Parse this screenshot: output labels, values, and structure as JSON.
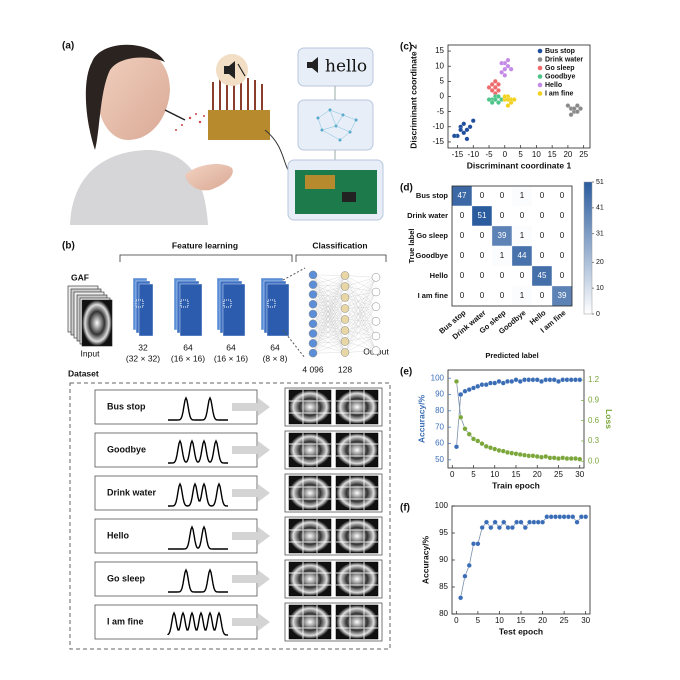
{
  "panel_a": {
    "label": "(a)",
    "speech_text": "hello"
  },
  "panel_b": {
    "label": "(b)",
    "feature_learning": "Feature learning",
    "classification": "Classification",
    "gaf": "GAF",
    "input": "Input",
    "layers": [
      {
        "channels": "32",
        "size": "(32 × 32)"
      },
      {
        "channels": "64",
        "size": "(16 × 16)"
      },
      {
        "channels": "64",
        "size": "(16 × 16)"
      },
      {
        "channels": "64",
        "size": "(8 × 8)"
      }
    ],
    "dense": [
      "4 096",
      "128"
    ],
    "output": "Output",
    "dataset_title": "Dataset",
    "dataset": [
      "Bus stop",
      "Goodbye",
      "Drink water",
      "Hello",
      "Go sleep",
      "I am fine"
    ]
  },
  "chart_data": [
    {
      "type": "scatter",
      "label": "(c)",
      "xlabel": "Discriminant coordinate 1",
      "ylabel": "Discriminant coordinate 2",
      "xlim": [
        -18,
        27
      ],
      "xticks": [
        -15,
        -10,
        -5,
        0,
        5,
        10,
        15,
        20,
        25
      ],
      "ylim": [
        -17,
        17
      ],
      "yticks": [
        -15,
        -10,
        -5,
        0,
        5,
        10,
        15
      ],
      "legend": "upper right",
      "series": [
        {
          "name": "Bus stop",
          "color": "#1f4e9c",
          "x": [
            -14,
            -13,
            -12,
            -15,
            -13,
            -11,
            -14,
            -12,
            -16,
            -10
          ],
          "values": [
            -10,
            -12,
            -11,
            -13,
            -9,
            -10,
            -11,
            -14,
            -13,
            -8
          ]
        },
        {
          "name": "Drink water",
          "color": "#8a8a8a",
          "x": [
            20,
            21,
            22,
            23,
            22,
            21,
            23,
            24
          ],
          "values": [
            -3,
            -4,
            -5,
            -3,
            -4,
            -6,
            -5,
            -4
          ]
        },
        {
          "name": "Go sleep",
          "color": "#ef6b6b",
          "x": [
            -4,
            -3,
            -2,
            -5,
            -3,
            -4,
            -2,
            -3
          ],
          "values": [
            2,
            3,
            4,
            3,
            5,
            4,
            2,
            1
          ]
        },
        {
          "name": "Goodbye",
          "color": "#4fc48a",
          "x": [
            -4,
            -3,
            -2,
            -3,
            -4,
            -2,
            -5,
            -1
          ],
          "values": [
            -1,
            0,
            -2,
            -1,
            -2,
            0,
            -1,
            -1
          ]
        },
        {
          "name": "Hello",
          "color": "#c38ae6",
          "x": [
            -1,
            0,
            1,
            0,
            2,
            -1,
            1,
            0
          ],
          "values": [
            8,
            9,
            10,
            11,
            9,
            11,
            12,
            7
          ]
        },
        {
          "name": "I am fine",
          "color": "#f2d21e",
          "x": [
            0,
            1,
            2,
            1,
            0,
            2,
            1,
            3
          ],
          "values": [
            -1,
            0,
            -2,
            -1,
            0,
            -1,
            -3,
            -1
          ]
        }
      ]
    },
    {
      "type": "heatmap",
      "label": "(d)",
      "xlabel": "Predicted label",
      "ylabel": "True label",
      "categories": [
        "Bus stop",
        "Drink water",
        "Go sleep",
        "Goodbye",
        "Hello",
        "I am fine"
      ],
      "values": [
        [
          47,
          0,
          0,
          1,
          0,
          0
        ],
        [
          0,
          51,
          0,
          0,
          0,
          0
        ],
        [
          0,
          0,
          39,
          1,
          0,
          0
        ],
        [
          0,
          0,
          1,
          44,
          0,
          0
        ],
        [
          0,
          0,
          0,
          0,
          45,
          0
        ],
        [
          0,
          0,
          0,
          1,
          0,
          39
        ]
      ],
      "color": "#2b5c9e",
      "zlim": [
        0,
        51
      ],
      "zticks": [
        0,
        10,
        20,
        31,
        41,
        51
      ]
    },
    {
      "type": "line",
      "label": "(e)",
      "xlabel": "Train epoch",
      "ylabel": "Accuracy/%",
      "y2label": "Loss",
      "xlim": [
        -1,
        31
      ],
      "xticks": [
        0,
        5,
        10,
        15,
        20,
        25,
        30
      ],
      "ylim": [
        45,
        105
      ],
      "yticks": [
        50,
        60,
        70,
        80,
        90,
        100
      ],
      "y2lim": [
        -0.1,
        1.35
      ],
      "y2ticks": [
        {
          "value": 0,
          "label": "0.0"
        },
        0.3,
        0.6,
        0.9,
        1.2
      ],
      "x": [
        1,
        2,
        3,
        4,
        5,
        6,
        7,
        8,
        9,
        10,
        11,
        12,
        13,
        14,
        15,
        16,
        17,
        18,
        19,
        20,
        21,
        22,
        23,
        24,
        25,
        26,
        27,
        28,
        29,
        30
      ],
      "series": [
        {
          "color": "#3a6db5",
          "values": [
            58,
            90,
            92,
            93,
            94,
            95,
            96,
            96,
            97,
            97,
            98,
            97,
            98,
            98,
            99,
            98,
            99,
            99,
            99,
            99,
            98,
            99,
            99,
            99,
            98,
            99,
            99,
            99,
            99,
            99
          ]
        },
        {
          "color": "#7aa63a",
          "axis": "y2",
          "values": [
            1.18,
            0.65,
            0.48,
            0.4,
            0.33,
            0.3,
            0.26,
            0.22,
            0.2,
            0.18,
            0.16,
            0.15,
            0.13,
            0.12,
            0.11,
            0.1,
            0.09,
            0.08,
            0.08,
            0.07,
            0.06,
            0.07,
            0.05,
            0.05,
            0.04,
            0.05,
            0.04,
            0.04,
            0.04,
            0.03
          ]
        }
      ]
    },
    {
      "type": "line",
      "label": "(f)",
      "xlabel": "Test epoch",
      "ylabel": "Accuracy/%",
      "xlim": [
        -1,
        31
      ],
      "xticks": [
        0,
        5,
        10,
        15,
        20,
        25,
        30
      ],
      "ylim": [
        80,
        100
      ],
      "yticks": [
        80,
        85,
        90,
        95,
        100
      ],
      "x": [
        1,
        2,
        3,
        4,
        5,
        6,
        7,
        8,
        9,
        10,
        11,
        12,
        13,
        14,
        15,
        16,
        17,
        18,
        19,
        20,
        21,
        22,
        23,
        24,
        25,
        26,
        27,
        28,
        29,
        30
      ],
      "series": [
        {
          "color": "#3a6db5",
          "values": [
            83,
            87,
            89,
            93,
            93,
            96,
            97,
            96,
            97,
            96,
            97,
            96,
            96,
            97,
            97,
            96,
            97,
            97,
            97,
            97,
            98,
            98,
            98,
            98,
            98,
            98,
            98,
            97,
            98,
            98
          ]
        }
      ]
    }
  ]
}
